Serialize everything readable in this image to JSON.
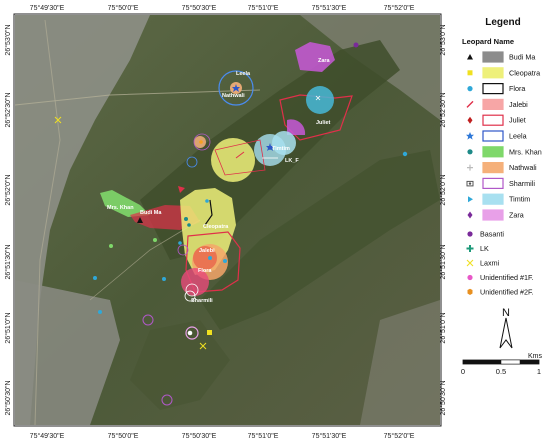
{
  "map": {
    "top_ticks": [
      "75°49'30\"E",
      "75°50'0\"E",
      "75°50'30\"E",
      "75°51'0\"E",
      "75°51'30\"E",
      "75°52'0\"E"
    ],
    "bottom_ticks": [
      "75°49'30\"E",
      "75°50'0\"E",
      "75°50'30\"E",
      "75°51'0\"E",
      "75°51'30\"E",
      "75°52'0\"E"
    ],
    "left_ticks": [
      "26°53'0\"N",
      "26°52'30\"N",
      "26°52'0\"N",
      "26°51'30\"N",
      "26°51'0\"N",
      "26°50'30\"N"
    ],
    "right_ticks": [
      "26°53'0\"N",
      "26°52'30\"N",
      "26°52'0\"N",
      "26°51'30\"N",
      "26°51'0\"N",
      "26°50'30\"N"
    ],
    "labels": {
      "zara": "Zara",
      "leela": "Leela",
      "nathwali": "Nathwali",
      "juliet": "Juliet",
      "timtim": "Timtim",
      "lkf": "LK_F",
      "mrskhan": "Mrs. Khan",
      "budima": "Budi Ma",
      "cleopatra": "Cleopatra",
      "jalebi": "Jalebi",
      "flora": "Flora",
      "sharmili": "Sharmili"
    },
    "colors": {
      "budima": "#8c8c8c",
      "cleopatra": "#eef07a",
      "flora": "#ffffff",
      "jalebi": "#f7a6a6",
      "juliet": "#e0304a",
      "leela": "#2e56c8",
      "mrskhan": "#7fd86a",
      "nathwali": "#f5b07a",
      "sharmili": "#b058c8",
      "timtim": "#a8e0f0",
      "zara": "#e8a0e8"
    }
  },
  "legend": {
    "title": "Legend",
    "subtitle": "Leopard Name",
    "area_items": [
      {
        "name": "Budi Ma",
        "marker": "triangle-icon"
      },
      {
        "name": "Cleopatra",
        "marker": "square-icon"
      },
      {
        "name": "Flora",
        "marker": "dot-icon"
      },
      {
        "name": "Jalebi",
        "marker": "slash-icon"
      },
      {
        "name": "Juliet",
        "marker": "diamond-icon"
      },
      {
        "name": "Leela",
        "marker": "star-icon"
      },
      {
        "name": "Mrs. Khan",
        "marker": "dot-icon"
      },
      {
        "name": "Nathwali",
        "marker": "plus-icon"
      },
      {
        "name": "Sharmili",
        "marker": "camera-icon"
      },
      {
        "name": "Timtim",
        "marker": "flag-icon"
      },
      {
        "name": "Zara",
        "marker": "diamond-icon"
      }
    ],
    "point_items": [
      {
        "name": "Basanti",
        "marker": "dot-icon"
      },
      {
        "name": "LK",
        "marker": "cross-icon"
      },
      {
        "name": "Laxmi",
        "marker": "x-icon"
      },
      {
        "name": "Unidentified #1F.",
        "marker": "dot-icon"
      },
      {
        "name": "Unidentified #2F.",
        "marker": "hexagon-icon"
      }
    ]
  },
  "north_arrow": {
    "label": "N"
  },
  "scale_bar": {
    "unit": "Kms",
    "ticks": [
      "0",
      "0.5",
      "1"
    ]
  }
}
